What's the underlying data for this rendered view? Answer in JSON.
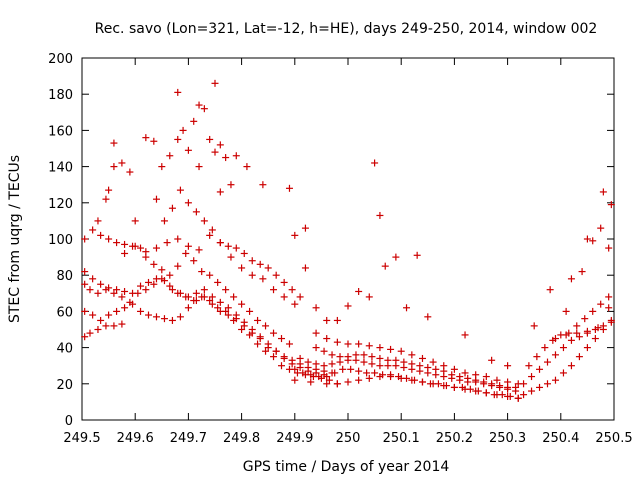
{
  "chart_data": {
    "type": "scatter",
    "title": "Rec. savo (Lon=321, Lat=-12, h=HE), days 249-250, 2014, window 002",
    "xlabel": "GPS time / Days of year 2014",
    "ylabel": "STEC from uqrg / TECUs",
    "xlim": [
      249.5,
      250.5
    ],
    "ylim": [
      0,
      200
    ],
    "xticks": [
      249.5,
      249.6,
      249.7,
      249.8,
      249.9,
      250,
      250.1,
      250.2,
      250.3,
      250.4,
      250.5
    ],
    "xtick_labels": [
      "249.5",
      "249.6",
      "249.7",
      "249.8",
      "249.9",
      "250",
      "250.1",
      "250.2",
      "250.3",
      "250.4",
      "250.5"
    ],
    "yticks": [
      0,
      20,
      40,
      60,
      80,
      100,
      120,
      140,
      160,
      180,
      200
    ],
    "ytick_labels": [
      "0",
      "20",
      "40",
      "60",
      "80",
      "100",
      "120",
      "140",
      "160",
      "180",
      "200"
    ],
    "grid": false,
    "marker": "plus",
    "color": "#cc0000",
    "series": [
      {
        "x": [
          249.505,
          249.515,
          249.53,
          249.545,
          249.56,
          249.575,
          249.59,
          249.605,
          249.62,
          249.635,
          249.65,
          249.665,
          249.68,
          249.695,
          249.71,
          249.725,
          249.74,
          249.755,
          249.77,
          249.785,
          249.8,
          249.815,
          249.83,
          249.845,
          249.86,
          249.875,
          249.89,
          249.905,
          249.92,
          249.935,
          249.95,
          249.965,
          249.98
        ],
        "y": [
          75,
          72,
          70,
          72,
          70,
          68,
          65,
          70,
          72,
          75,
          78,
          74,
          70,
          68,
          66,
          68,
          66,
          62,
          60,
          55,
          50,
          47,
          42,
          38,
          35,
          30,
          28,
          26,
          25,
          24,
          23,
          22,
          20
        ]
      },
      {
        "x": [
          249.505,
          249.52,
          249.535,
          249.55,
          249.565,
          249.58,
          249.595,
          249.61,
          249.625,
          249.64,
          249.655,
          249.67,
          249.685,
          249.7,
          249.715,
          249.73,
          249.745,
          249.76,
          249.775,
          249.79,
          249.805,
          249.82,
          249.835,
          249.85,
          249.865,
          249.88,
          249.895,
          249.91,
          249.925,
          249.94,
          249.955
        ],
        "y": [
          82,
          78,
          75,
          73,
          72,
          71,
          70,
          74,
          76,
          78,
          77,
          72,
          70,
          68,
          70,
          72,
          68,
          65,
          62,
          58,
          54,
          50,
          46,
          42,
          38,
          34,
          31,
          29,
          27,
          26,
          25
        ]
      },
      {
        "x": [
          249.505,
          249.52,
          249.535,
          249.55,
          249.565,
          249.58,
          249.595,
          249.61,
          249.625,
          249.64,
          249.655,
          249.67,
          249.685,
          249.7,
          249.715,
          249.73,
          249.745,
          249.76,
          249.775,
          249.79,
          249.805,
          249.82,
          249.835,
          249.85,
          249.865,
          249.88,
          249.895,
          249.91,
          249.925,
          249.94,
          249.955,
          249.97
        ],
        "y": [
          60,
          58,
          55,
          58,
          60,
          62,
          64,
          60,
          58,
          57,
          56,
          55,
          57,
          62,
          66,
          68,
          64,
          60,
          58,
          56,
          52,
          48,
          45,
          40,
          38,
          35,
          33,
          31,
          29,
          28,
          27,
          26
        ]
      },
      {
        "x": [
          249.505,
          249.515,
          249.53,
          249.545,
          249.56,
          249.575
        ],
        "y": [
          46,
          48,
          50,
          52,
          52,
          53
        ]
      },
      {
        "x": [
          249.505,
          249.52,
          249.535,
          249.55,
          249.565,
          249.58,
          249.595,
          249.61
        ],
        "y": [
          100,
          105,
          102,
          100,
          98,
          97,
          96,
          95
        ]
      },
      {
        "x": [
          249.62,
          249.635,
          249.65,
          249.665,
          249.68,
          249.695,
          249.71,
          249.725,
          249.74,
          249.755,
          249.77,
          249.785,
          249.8,
          249.815,
          249.83,
          249.845,
          249.86,
          249.875,
          249.89
        ],
        "y": [
          90,
          86,
          83,
          80,
          85,
          92,
          88,
          82,
          80,
          76,
          72,
          68,
          64,
          60,
          55,
          52,
          48,
          45,
          42
        ]
      },
      {
        "x": [
          249.53,
          249.545,
          249.56,
          249.575,
          249.59,
          249.6
        ],
        "y": [
          110,
          122,
          140,
          142,
          137,
          110
        ]
      },
      {
        "x": [
          249.62,
          249.635,
          249.65,
          249.665,
          249.68,
          249.69,
          249.7,
          249.71,
          249.72,
          249.73,
          249.74,
          249.75,
          249.76,
          249.77,
          249.78,
          249.79
        ],
        "y": [
          156,
          154,
          140,
          146,
          155,
          160,
          149,
          165,
          174,
          172,
          155,
          148,
          152,
          145,
          130,
          146
        ]
      },
      {
        "x": [
          249.655,
          249.67,
          249.685,
          249.7,
          249.715,
          249.73,
          249.745,
          249.76,
          249.775,
          249.79,
          249.805,
          249.82,
          249.835,
          249.85,
          249.865,
          249.88,
          249.895,
          249.91
        ],
        "y": [
          110,
          117,
          127,
          120,
          115,
          110,
          105,
          98,
          96,
          95,
          92,
          88,
          86,
          84,
          80,
          76,
          72,
          68
        ]
      },
      {
        "x": [
          249.58,
          249.6,
          249.62,
          249.64,
          249.66,
          249.68,
          249.7,
          249.72,
          249.74,
          249.76,
          249.78,
          249.8,
          249.82,
          249.84,
          249.86,
          249.88,
          249.9
        ],
        "y": [
          92,
          96,
          93,
          95,
          98,
          100,
          96,
          94,
          102,
          98,
          90,
          84,
          80,
          78,
          72,
          68,
          64
        ]
      },
      {
        "x": [
          249.68,
          249.75,
          249.55,
          249.56,
          249.64,
          249.72,
          249.76,
          249.81,
          249.84,
          249.89,
          249.92
        ],
        "y": [
          181,
          186,
          127,
          153,
          122,
          140,
          126,
          140,
          130,
          128,
          84
        ]
      },
      {
        "x": [
          249.9,
          249.915,
          249.93,
          249.945,
          249.96,
          249.975,
          249.99,
          250.005,
          250.02,
          250.035,
          250.05,
          250.065,
          250.08,
          250.095,
          250.11,
          250.125,
          250.14,
          250.155,
          250.17,
          250.185,
          250.2,
          250.215,
          250.23,
          250.245,
          250.26,
          250.275,
          250.29,
          250.305,
          250.32
        ],
        "y": [
          28,
          26,
          25,
          24,
          24,
          26,
          28,
          28,
          27,
          26,
          26,
          25,
          25,
          24,
          23,
          22,
          21,
          20,
          20,
          19,
          18,
          18,
          17,
          16,
          15,
          14,
          14,
          13,
          12
        ]
      },
      {
        "x": [
          249.91,
          249.925,
          249.94,
          249.955,
          249.97,
          249.985,
          250.0,
          250.015,
          250.03,
          250.045,
          250.06,
          250.075,
          250.09,
          250.105,
          250.12,
          250.135,
          250.15,
          250.165,
          250.18,
          250.195,
          250.21,
          250.225,
          250.24,
          250.255,
          250.27,
          250.285,
          250.3,
          250.315
        ],
        "y": [
          34,
          32,
          31,
          30,
          31,
          32,
          33,
          33,
          32,
          31,
          30,
          30,
          30,
          29,
          28,
          27,
          26,
          25,
          24,
          23,
          22,
          21,
          21,
          20,
          19,
          18,
          17,
          16
        ]
      },
      {
        "x": [
          249.94,
          249.955,
          249.97,
          249.985,
          250.0,
          250.015,
          250.03,
          250.045,
          250.06,
          250.075,
          250.09,
          250.105,
          250.12,
          250.135,
          250.15,
          250.165,
          250.18,
          250.195,
          250.21,
          250.225,
          250.24,
          250.255,
          250.27,
          250.285,
          250.3,
          250.315
        ],
        "y": [
          40,
          38,
          36,
          35,
          35,
          36,
          36,
          35,
          34,
          33,
          33,
          32,
          31,
          30,
          29,
          28,
          27,
          25,
          24,
          23,
          22,
          21,
          20,
          19,
          18,
          18
        ]
      },
      {
        "x": [
          249.94,
          249.96,
          249.98,
          250.0,
          250.02,
          250.04,
          250.06,
          250.08,
          250.1,
          250.12,
          250.14,
          250.16,
          250.18,
          250.2,
          250.22,
          250.24,
          250.26,
          250.28,
          250.3,
          250.32
        ],
        "y": [
          48,
          45,
          43,
          42,
          42,
          41,
          40,
          39,
          38,
          36,
          34,
          32,
          30,
          28,
          26,
          25,
          24,
          22,
          21,
          20
        ]
      },
      {
        "x": [
          249.9,
          249.93,
          249.96,
          249.98,
          250.0,
          250.02,
          250.04,
          250.06,
          250.08,
          250.1,
          250.12,
          250.14,
          250.16,
          250.18,
          250.2,
          250.22,
          250.24,
          250.26,
          250.28,
          250.3,
          250.32
        ],
        "y": [
          22,
          21,
          20,
          20,
          21,
          22,
          23,
          24,
          24,
          23,
          22,
          21,
          20,
          19,
          18,
          17,
          16,
          15,
          14,
          13,
          12
        ]
      },
      {
        "x": [
          249.9,
          249.92,
          249.94,
          249.96,
          249.98,
          250.0,
          250.02,
          250.04,
          250.05,
          250.06,
          250.07,
          250.09,
          250.11,
          250.13,
          250.15,
          250.22,
          250.27,
          250.3
        ],
        "y": [
          102,
          106,
          62,
          55,
          55,
          63,
          71,
          68,
          142,
          113,
          85,
          90,
          62,
          91,
          57,
          47,
          33,
          30
        ]
      },
      {
        "x": [
          250.33,
          250.345,
          250.36,
          250.375,
          250.39,
          250.405,
          250.42,
          250.435,
          250.45,
          250.465,
          250.48,
          250.495
        ],
        "y": [
          14,
          16,
          18,
          20,
          22,
          26,
          30,
          35,
          40,
          45,
          50,
          55
        ]
      },
      {
        "x": [
          250.33,
          250.345,
          250.36,
          250.375,
          250.39,
          250.405,
          250.42,
          250.435,
          250.45,
          250.465,
          250.48,
          250.495
        ],
        "y": [
          20,
          24,
          28,
          32,
          36,
          40,
          44,
          46,
          48,
          50,
          52,
          54
        ]
      },
      {
        "x": [
          250.34,
          250.355,
          250.37,
          250.385,
          250.4,
          250.415,
          250.43,
          250.445,
          250.46,
          250.475,
          250.49
        ],
        "y": [
          30,
          35,
          40,
          44,
          47,
          48,
          52,
          56,
          60,
          64,
          68
        ]
      },
      {
        "x": [
          250.35,
          250.38,
          250.41,
          250.42,
          250.44,
          250.45,
          250.46,
          250.475,
          250.48,
          250.49,
          250.495
        ],
        "y": [
          52,
          72,
          60,
          78,
          82,
          100,
          99,
          106,
          126,
          95,
          119
        ]
      },
      {
        "x": [
          250.39,
          250.41,
          250.43,
          250.45,
          250.47,
          250.49
        ],
        "y": [
          45,
          47,
          48,
          49,
          51,
          62
        ]
      }
    ]
  }
}
